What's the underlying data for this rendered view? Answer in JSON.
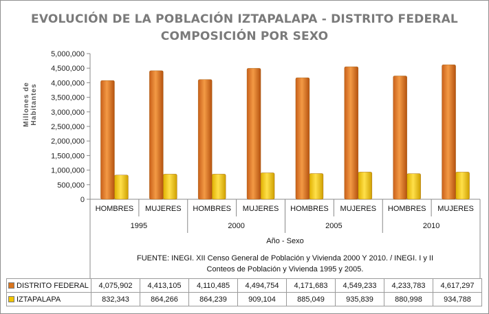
{
  "chart_data": {
    "type": "bar",
    "title": "EVOLUCIÓN DE LA POBLACIÓN IZTAPALAPA - DISTRITO FEDERAL",
    "subtitle": "COMPOSICIÓN POR SEXO",
    "ylabel": "Millones de Habitantes",
    "xlabel": "Año - Sexo",
    "ylim": [
      0,
      5000000
    ],
    "yticks": [
      0,
      500000,
      1000000,
      1500000,
      2000000,
      2500000,
      3000000,
      3500000,
      4000000,
      4500000,
      5000000
    ],
    "ytick_labels": [
      "0",
      "500,000",
      "1,000,000",
      "1,500,000",
      "2,000,000",
      "2,500,000",
      "3,000,000",
      "3,500,000",
      "4,000,000",
      "4,500,000",
      "5,000,000"
    ],
    "categories": [
      "HOMBRES",
      "MUJERES",
      "HOMBRES",
      "MUJERES",
      "HOMBRES",
      "MUJERES",
      "HOMBRES",
      "MUJERES"
    ],
    "groups": [
      "1995",
      "2000",
      "2005",
      "2010"
    ],
    "series": [
      {
        "name": "DISTRITO FEDERAL",
        "color": "#d9751e",
        "values": [
          4075902,
          4413105,
          4110485,
          4494754,
          4171683,
          4549233,
          4233783,
          4617297
        ],
        "labels": [
          "4,075,902",
          "4,413,105",
          "4,110,485",
          "4,494,754",
          "4,171,683",
          "4,549,233",
          "4,233,783",
          "4,617,297"
        ]
      },
      {
        "name": "IZTAPALAPA",
        "color": "#f2c500",
        "values": [
          832343,
          864266,
          864239,
          909104,
          885049,
          935839,
          880998,
          934788
        ],
        "labels": [
          "832,343",
          "864,266",
          "864,239",
          "909,104",
          "885,049",
          "935,839",
          "880,998",
          "934,788"
        ]
      }
    ],
    "grid": false,
    "legend": "data-table"
  },
  "notes": {
    "line1": "FUENTE:  INEGI.   XII Censo General de Población y Vivienda 2000 Y 2010. / INEGI.  I y II",
    "line2": "Conteos de Población y Vivienda 1995 y 2005."
  }
}
